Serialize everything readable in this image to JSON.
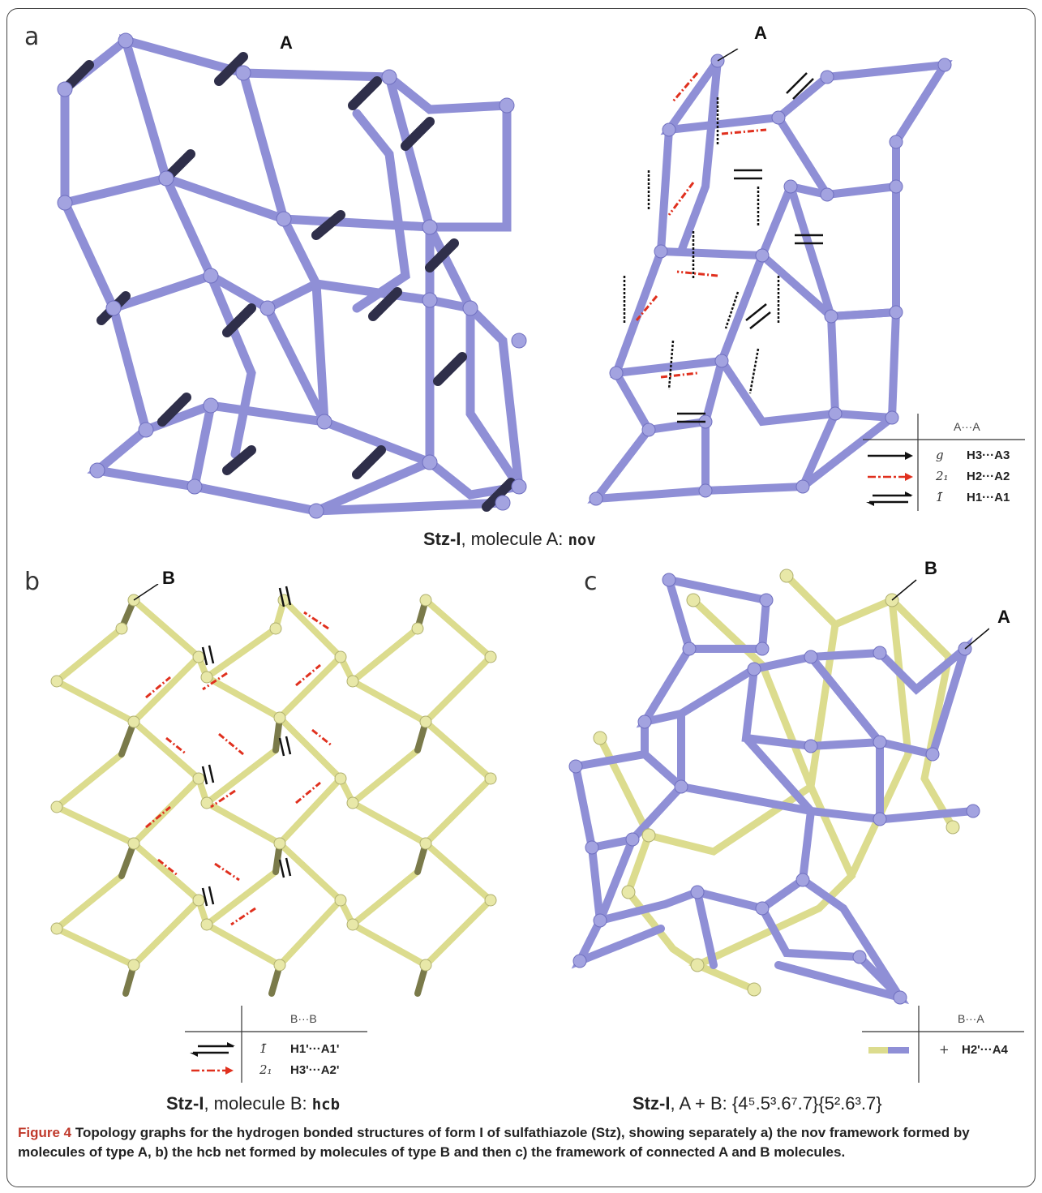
{
  "panels": {
    "a": {
      "letter": "a",
      "marker_left": "A",
      "marker_right": "A",
      "subtitle_bold": "Stz-I",
      "subtitle_text": ", molecule A: ",
      "subtitle_net": "nov"
    },
    "b": {
      "letter": "b",
      "marker": "B",
      "subtitle_bold": "Stz-I",
      "subtitle_text": ", molecule B: ",
      "subtitle_net": "hcb"
    },
    "c": {
      "letter": "c",
      "marker_b": "B",
      "marker_a": "A",
      "subtitle_bold": "Stz-I",
      "subtitle_text": ", A + B: {4⁵.5³.6⁷.7}{5².6³.7}"
    }
  },
  "legends": {
    "a": {
      "header": "A···A",
      "rows": [
        {
          "symbol": "g",
          "bond": "H3···A3"
        },
        {
          "symbol": "2₁",
          "bond": "H2···A2"
        },
        {
          "symbol": "1̄",
          "bond": "H1···A1"
        }
      ]
    },
    "b": {
      "header": "B···B",
      "rows": [
        {
          "symbol": "1̄",
          "bond": "H1'···A1'"
        },
        {
          "symbol": "2₁",
          "bond": "H3'···A2'"
        }
      ]
    },
    "c": {
      "header": "B···A",
      "rows": [
        {
          "symbol": "+",
          "bond": "H2'···A4"
        }
      ]
    }
  },
  "caption": {
    "figure": "Figure 4",
    "text": " Topology graphs for the hydrogen bonded structures of form I of sulfathiazole (Stz), showing separately a) the nov framework formed by molecules of type A, b) the hcb net formed by molecules of type B and then c) the framework of connected A and B molecules."
  },
  "colors": {
    "net_a": "#8f8fd6",
    "net_a_dark": "#3a3a5c",
    "net_b": "#dcdc8e",
    "net_b_dark": "#7a7a4a",
    "arrow_red": "#e0301e",
    "arrow_black": "#111111"
  }
}
